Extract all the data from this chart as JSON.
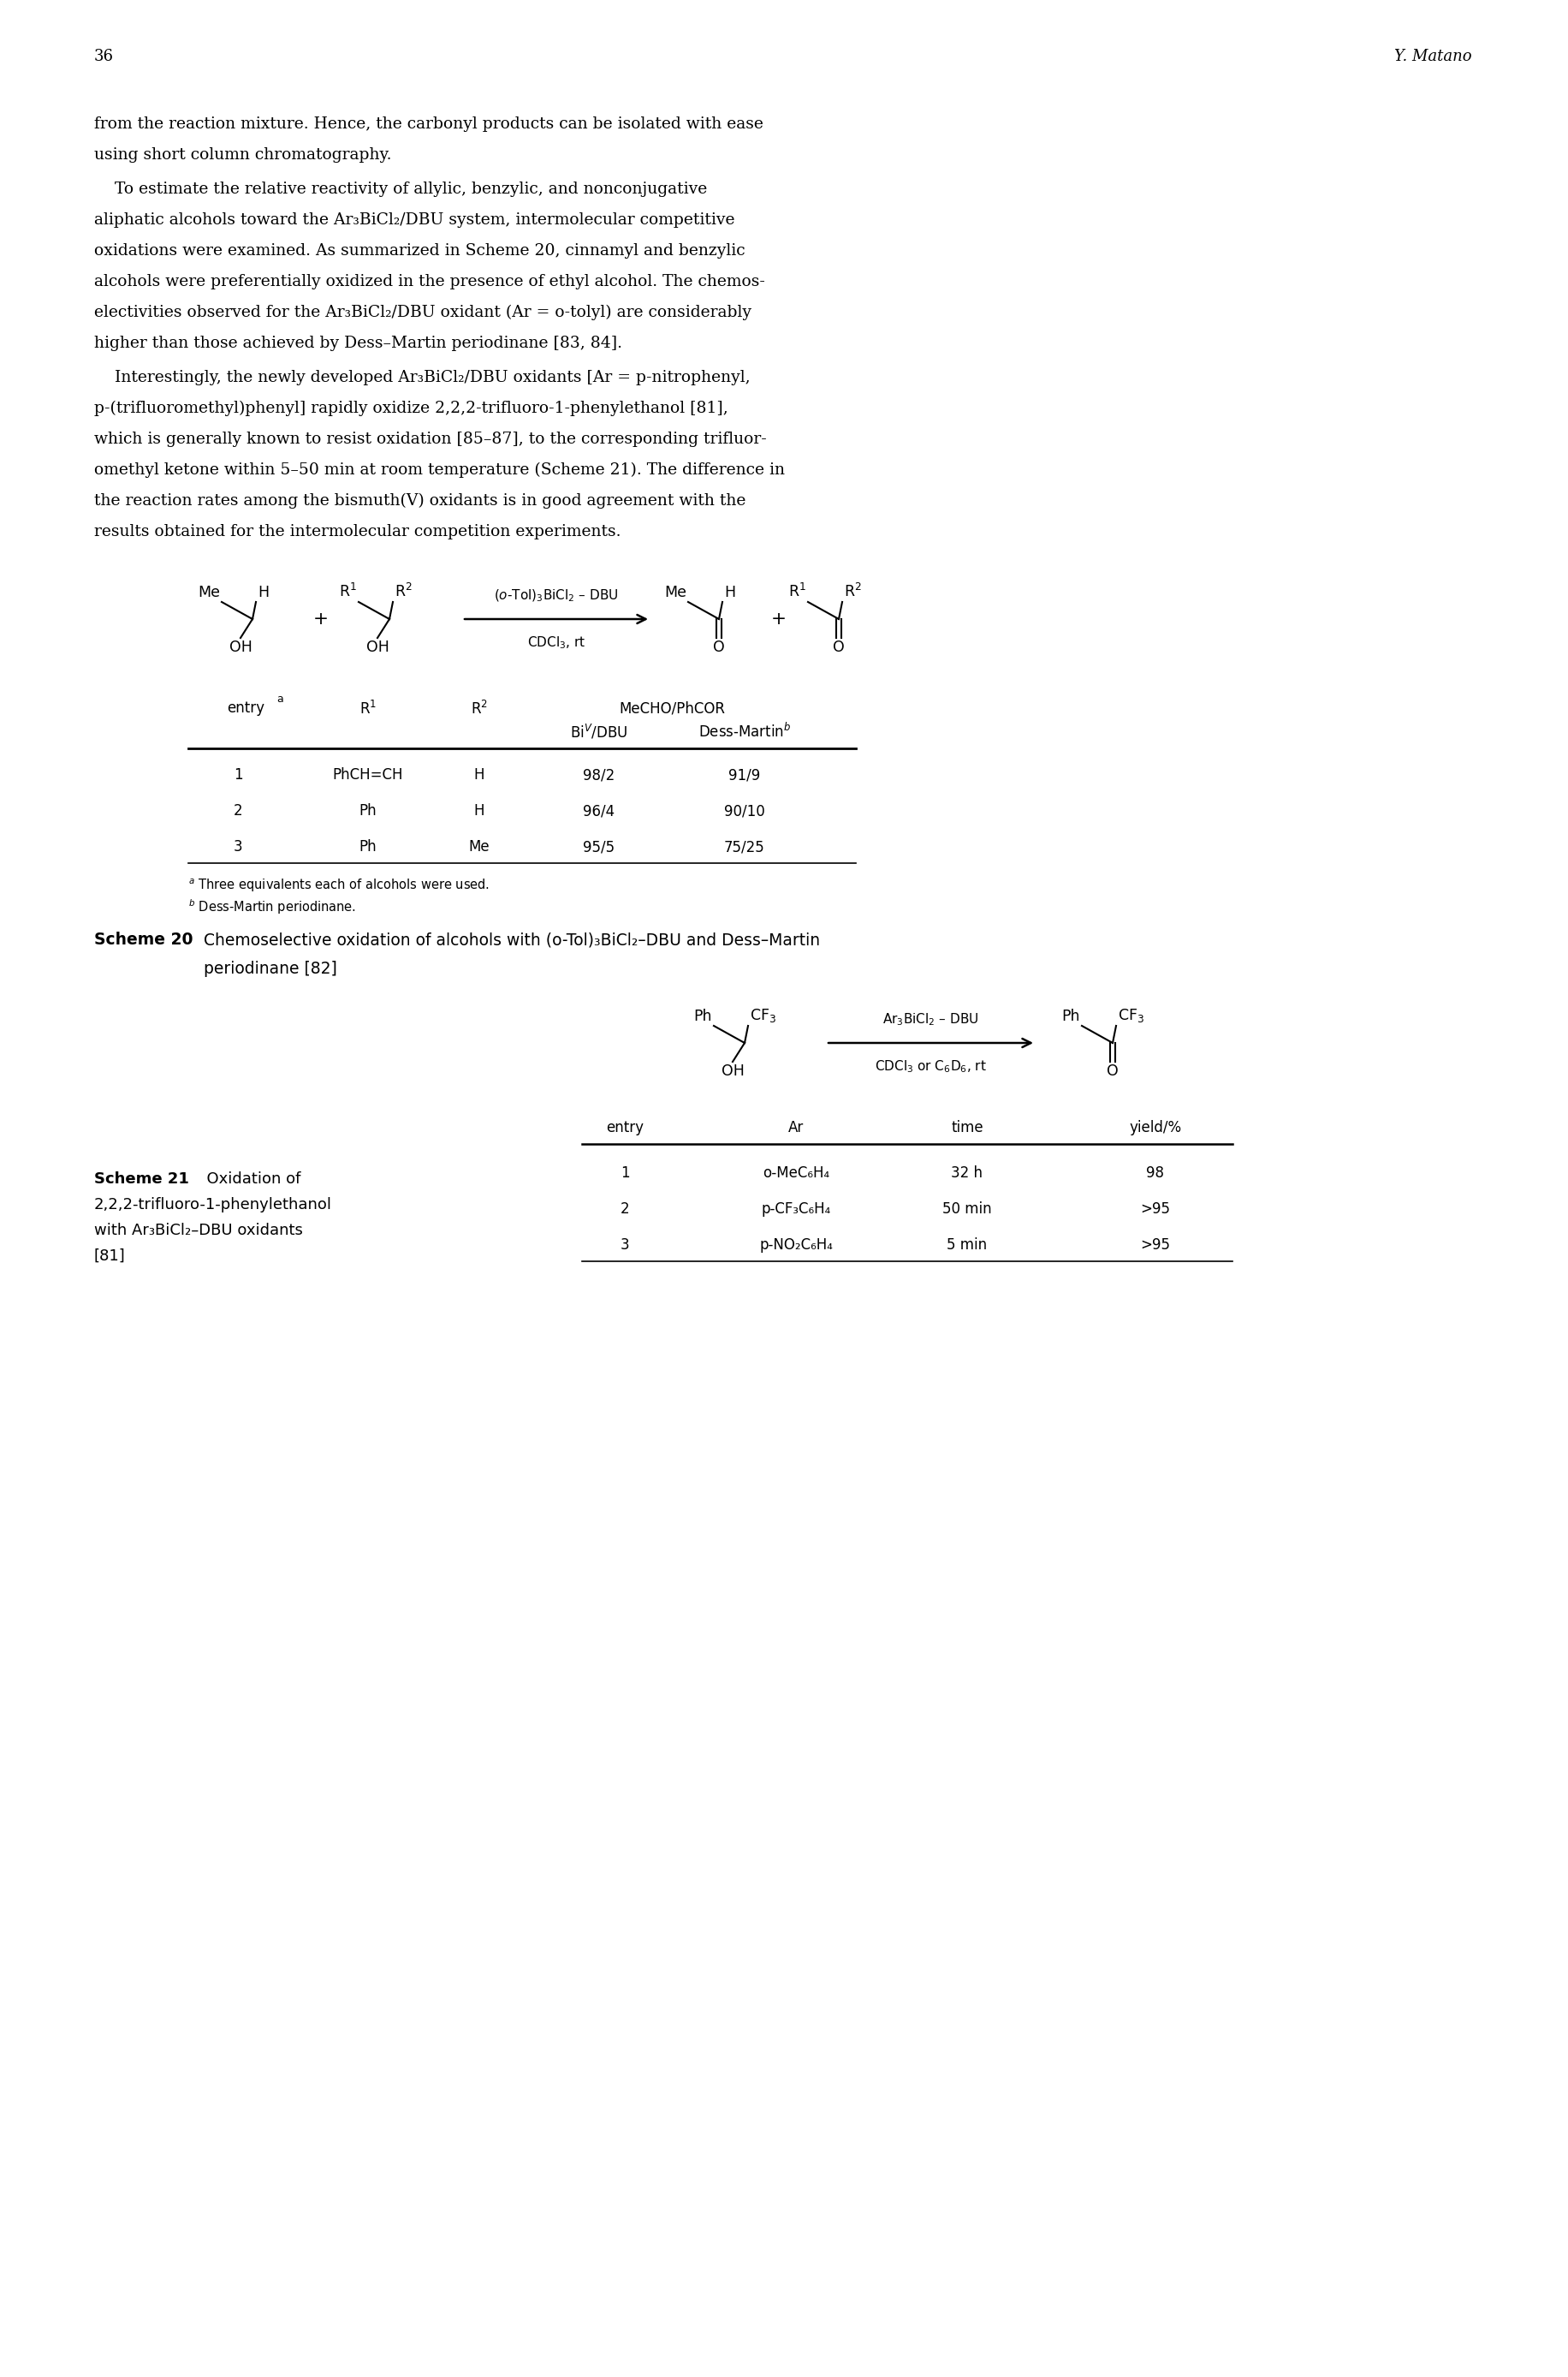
{
  "page_number": "36",
  "page_author": "Y. Matano",
  "para1_lines": [
    "from the reaction mixture. Hence, the carbonyl products can be isolated with ease",
    "using short column chromatography."
  ],
  "para2_lines": [
    "    To estimate the relative reactivity of allylic, benzylic, and nonconjugative",
    "aliphatic alcohols toward the Ar₃BiCl₂/DBU system, intermolecular competitive",
    "oxidations were examined. As summarized in Scheme 20, cinnamyl and benzylic",
    "alcohols were preferentially oxidized in the presence of ethyl alcohol. The chemos-",
    "electivities observed for the Ar₃BiCl₂/DBU oxidant (Ar = o-tolyl) are considerably",
    "higher than those achieved by Dess–Martin periodinane [83, 84]."
  ],
  "para3_lines": [
    "    Interestingly, the newly developed Ar₃BiCl₂/DBU oxidants [Ar = p-nitrophenyl,",
    "p-(trifluoromethyl)phenyl] rapidly oxidize 2,2,2-trifluoro-1-phenylethanol [81],",
    "which is generally known to resist oxidation [85–87], to the corresponding trifluor-",
    "omethyl ketone within 5–50 min at room temperature (Scheme 21). The difference in",
    "the reaction rates among the bismuth(V) oxidants is in good agreement with the",
    "results obtained for the intermolecular competition experiments."
  ],
  "table1_rows": [
    [
      "1",
      "PhCH=CH",
      "H",
      "98/2",
      "91/9"
    ],
    [
      "2",
      "Ph",
      "H",
      "96/4",
      "90/10"
    ],
    [
      "3",
      "Ph",
      "Me",
      "95/5",
      "75/25"
    ]
  ],
  "table2_rows": [
    [
      "1",
      "o-MeC₆H₄",
      "32 h",
      "98"
    ],
    [
      "2",
      "p-CF₃C₆H₄",
      "50 min",
      ">95"
    ],
    [
      "3",
      "p-NO₂C₆H₄",
      "5 min",
      ">95"
    ]
  ],
  "scheme20_caption": "Chemoselective oxidation of alcohols with (o-Tol)₃BiCl₂–DBU and Dess–Martin",
  "scheme20_caption2": "periodinane [82]",
  "scheme21_cap_lines": [
    "Scheme 21  Oxidation of",
    "2,2,2-trifluoro-1-phenylethanol",
    "with Ar₃BiCl₂–DBU oxidants",
    "[81]"
  ]
}
